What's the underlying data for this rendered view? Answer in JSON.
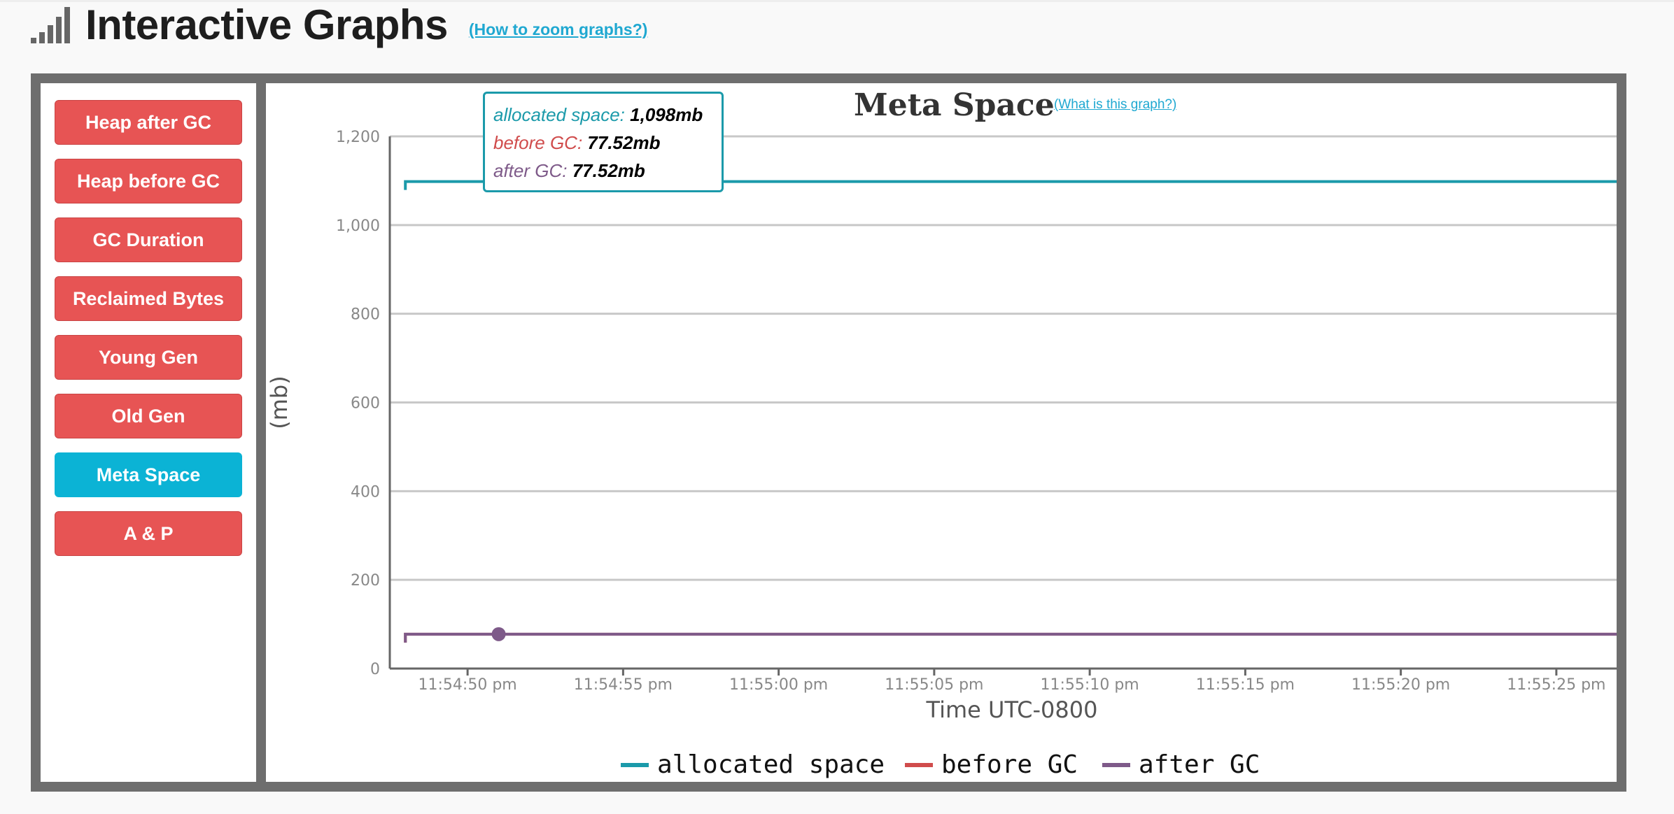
{
  "header": {
    "title": "Interactive Graphs",
    "zoom_link": "(How to zoom graphs?)"
  },
  "sidebar": {
    "buttons": [
      {
        "label": "Heap after GC"
      },
      {
        "label": "Heap before GC"
      },
      {
        "label": "GC Duration"
      },
      {
        "label": "Reclaimed Bytes"
      },
      {
        "label": "Young Gen"
      },
      {
        "label": "Old Gen"
      },
      {
        "label": "Meta Space"
      },
      {
        "label": "A & P"
      }
    ],
    "active_index": 6
  },
  "colors": {
    "button": "#e75454",
    "button_active": "#0bb3d5",
    "allocated": "#1b9aaa",
    "before": "#d04c4c",
    "after": "#7e5a89"
  },
  "chart_data": {
    "type": "line",
    "title": "Meta Space",
    "help_link": "(What is this graph?)",
    "xlabel": "Time UTC-0800",
    "ylabel": "(mb)",
    "ylim": [
      0,
      1200
    ],
    "yticks": [
      "0",
      "200",
      "400",
      "600",
      "800",
      "1,000",
      "1,200"
    ],
    "yticks_values": [
      0,
      200,
      400,
      600,
      800,
      1000,
      1200
    ],
    "xlim": [
      "11:54:47.5 pm",
      "11:55:27.5 pm"
    ],
    "xticks": [
      "11:54:50 pm",
      "11:54:55 pm",
      "11:55:00 pm",
      "11:55:05 pm",
      "11:55:10 pm",
      "11:55:15 pm",
      "11:55:20 pm",
      "11:55:25 pm"
    ],
    "x": [
      "11:54:48 pm",
      "11:54:51 pm",
      "11:55:27 pm"
    ],
    "series": [
      {
        "name": "allocated space",
        "values": [
          1098,
          1098,
          1098
        ]
      },
      {
        "name": "before GC",
        "values": [
          77.52,
          77.52,
          77.52
        ]
      },
      {
        "name": "after GC",
        "values": [
          77.52,
          77.52,
          77.52
        ]
      }
    ],
    "grid": true,
    "legend": "bottom",
    "tooltip": {
      "rows": [
        {
          "label": "allocated space:",
          "value": "1,098mb"
        },
        {
          "label": "before GC:",
          "value": "77.52mb"
        },
        {
          "label": "after GC:",
          "value": "77.52mb"
        }
      ]
    }
  }
}
